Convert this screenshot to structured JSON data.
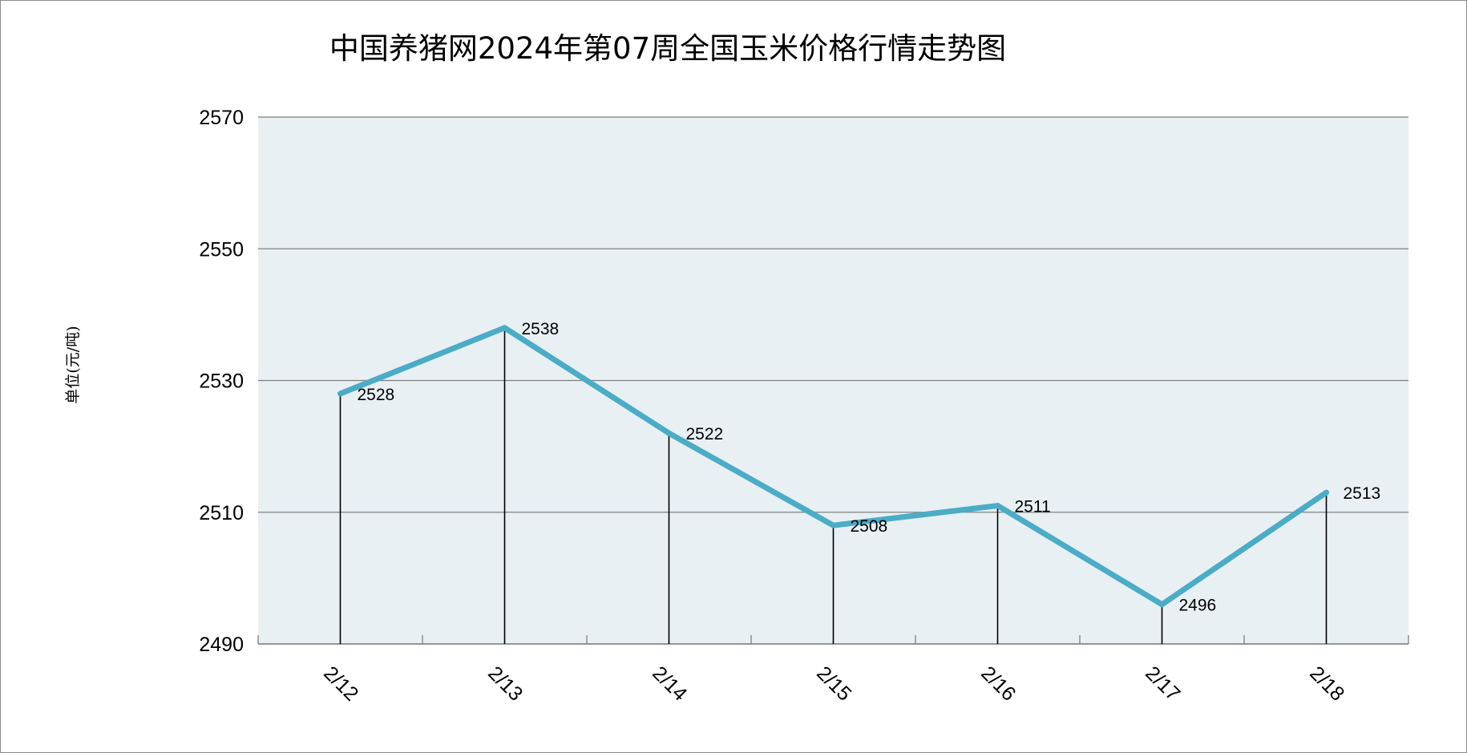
{
  "chart_data": {
    "type": "line",
    "title": "中国养猪网2024年第07周全国玉米价格行情走势图",
    "ylabel": "单位(元/吨)",
    "xlabel": "",
    "categories": [
      "2/12",
      "2/13",
      "2/14",
      "2/15",
      "2/16",
      "2/17",
      "2/18"
    ],
    "series": [
      {
        "values": [
          2528,
          2538,
          2522,
          2508,
          2511,
          2496,
          2513
        ]
      }
    ],
    "ylim": [
      2490,
      2570
    ],
    "yticks": [
      2490,
      2510,
      2530,
      2550,
      2570
    ],
    "grid": true,
    "drop_lines": true,
    "data_labels": true,
    "colors": {
      "line": "#4bacc6",
      "plot_background": "#e8f0f4",
      "gridline": "#7f7f7f",
      "drop_line": "#000000"
    }
  }
}
